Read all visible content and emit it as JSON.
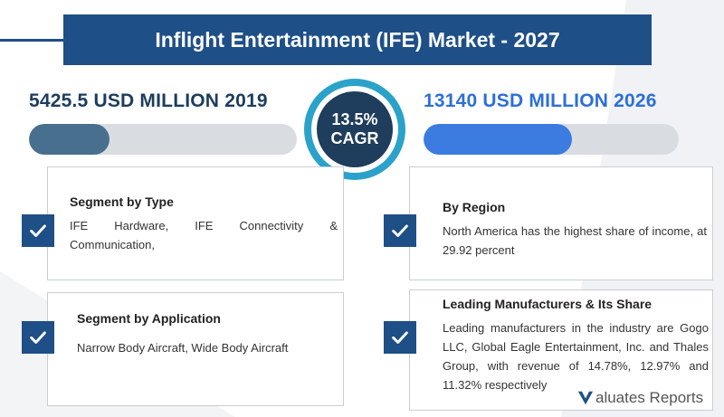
{
  "header": {
    "title": "Inflight Entertainment (IFE) Market - 2027"
  },
  "stats": {
    "left": {
      "label": "5425.5 USD MILLION 2019",
      "bar_fill_percent": 30
    },
    "right": {
      "label": "13140 USD MILLION 2026",
      "bar_fill_percent": 58
    },
    "cagr": {
      "value": "13.5%",
      "label": "CAGR"
    }
  },
  "cards": {
    "type": {
      "title": "Segment by Type",
      "line1_words": [
        "IFE",
        "Hardware,",
        "IFE",
        "Connectivity",
        "&"
      ],
      "line2": "Communication,"
    },
    "application": {
      "title": "Segment by Application",
      "text": "Narrow Body Aircraft, Wide Body Aircraft"
    },
    "region": {
      "title": "By Region",
      "text": "North America has the highest share of income, at 29.92 percent"
    },
    "manufacturers": {
      "title": "Leading Manufacturers & Its Share",
      "text": "Leading manufacturers in the industry are Gogo LLC, Global Eagle Entertainment, Inc. and Thales Group, with revenue of 14.78%, 12.97% and 11.32% respectively"
    }
  },
  "logo": {
    "text": "aluates Reports"
  },
  "colors": {
    "navy": "#1e4f87",
    "teal_ring": "#2aa2c9",
    "blue_accent": "#2d6fd6",
    "dark_navy": "#1c3d5e"
  }
}
